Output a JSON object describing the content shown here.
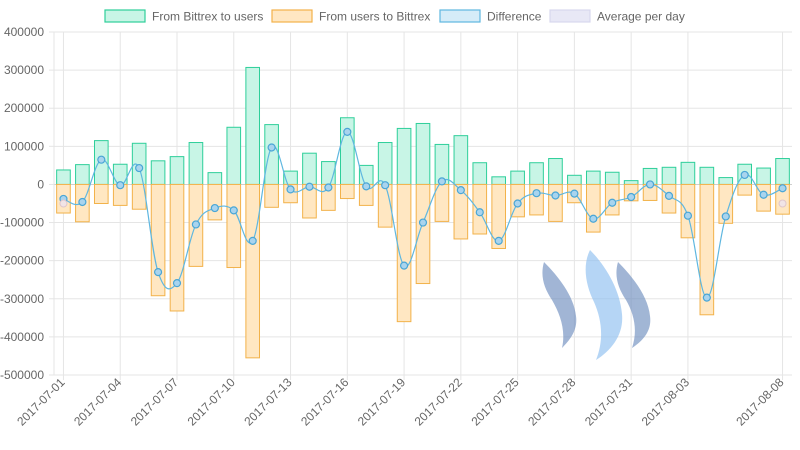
{
  "chart_data": {
    "type": "bar",
    "legend": {
      "position": "top",
      "items": [
        {
          "label": "From Bittrex to users",
          "fill": "#c8f5e6",
          "stroke": "#2ecf9a"
        },
        {
          "label": "From users to Bittrex",
          "fill": "#ffe7c2",
          "stroke": "#f2b24a"
        },
        {
          "label": "Difference",
          "fill": "#d5ecf8",
          "stroke": "#5fb7e0"
        },
        {
          "label": "Average per day",
          "fill": "#e8e8f6",
          "stroke": "#d8d8ee"
        }
      ]
    },
    "x": [
      "2017-07-01",
      "2017-07-02",
      "2017-07-03",
      "2017-07-04",
      "2017-07-05",
      "2017-07-06",
      "2017-07-07",
      "2017-07-08",
      "2017-07-09",
      "2017-07-10",
      "2017-07-11",
      "2017-07-12",
      "2017-07-13",
      "2017-07-14",
      "2017-07-15",
      "2017-07-16",
      "2017-07-17",
      "2017-07-18",
      "2017-07-19",
      "2017-07-20",
      "2017-07-21",
      "2017-07-22",
      "2017-07-23",
      "2017-07-24",
      "2017-07-25",
      "2017-07-26",
      "2017-07-27",
      "2017-07-28",
      "2017-07-29",
      "2017-07-30",
      "2017-07-31",
      "2017-08-01",
      "2017-08-02",
      "2017-08-03",
      "2017-08-04",
      "2017-08-05",
      "2017-08-06",
      "2017-08-07",
      "2017-08-08"
    ],
    "x_tick_labels": [
      {
        "label": "2017-07-01",
        "index": 0
      },
      {
        "label": "2017-07-04",
        "index": 3
      },
      {
        "label": "2017-07-07",
        "index": 6
      },
      {
        "label": "2017-07-10",
        "index": 9
      },
      {
        "label": "2017-07-13",
        "index": 12
      },
      {
        "label": "2017-07-16",
        "index": 15
      },
      {
        "label": "2017-07-19",
        "index": 18
      },
      {
        "label": "2017-07-22",
        "index": 21
      },
      {
        "label": "2017-07-25",
        "index": 24
      },
      {
        "label": "2017-07-28",
        "index": 27
      },
      {
        "label": "2017-07-31",
        "index": 30
      },
      {
        "label": "2017-08-03",
        "index": 33
      },
      {
        "label": "2017-08-08",
        "index": 38
      }
    ],
    "y_ticks": [
      400000,
      300000,
      200000,
      100000,
      0,
      -100000,
      -200000,
      -300000,
      -400000,
      -500000
    ],
    "ylim": [
      -500000,
      400000
    ],
    "grid": true,
    "series": [
      {
        "name": "From Bittrex to users",
        "type": "bar",
        "color": "#2ecf9a",
        "values": [
          38000,
          52000,
          115000,
          53000,
          108000,
          62000,
          73000,
          110000,
          31000,
          150000,
          307000,
          157000,
          35000,
          82000,
          60000,
          175000,
          50000,
          110000,
          147000,
          160000,
          105000,
          128000,
          57000,
          20000,
          35000,
          57000,
          68000,
          24000,
          35000,
          32000,
          10000,
          42000,
          45000,
          58000,
          45000,
          18000,
          53000,
          43000,
          68000
        ]
      },
      {
        "name": "From users to Bittrex",
        "type": "bar",
        "color": "#f2b24a",
        "values": [
          -75000,
          -98000,
          -50000,
          -55000,
          -65000,
          -292000,
          -332000,
          -215000,
          -93000,
          -218000,
          -455000,
          -60000,
          -48000,
          -88000,
          -68000,
          -37000,
          -55000,
          -112000,
          -360000,
          -260000,
          -97000,
          -143000,
          -130000,
          -168000,
          -85000,
          -80000,
          -97000,
          -48000,
          -125000,
          -80000,
          -43000,
          -42000,
          -75000,
          -140000,
          -342000,
          -102000,
          -28000,
          -70000,
          -78000
        ]
      },
      {
        "name": "Difference",
        "type": "line",
        "color": "#5fb7e0",
        "values": [
          -38000,
          -46000,
          65000,
          -2000,
          43000,
          -230000,
          -259000,
          -105000,
          -62000,
          -68000,
          -148000,
          97000,
          -13000,
          -6000,
          -8000,
          138000,
          -5000,
          -2000,
          -213000,
          -100000,
          8000,
          -15000,
          -73000,
          -148000,
          -50000,
          -23000,
          -29000,
          -24000,
          -90000,
          -48000,
          -33000,
          0,
          -30000,
          -82000,
          -297000,
          -84000,
          25000,
          -27000,
          -10000
        ]
      },
      {
        "name": "Average per day",
        "type": "point",
        "color": "#e8d6da",
        "points": [
          {
            "index": 0,
            "value": -50000
          },
          {
            "index": 38,
            "value": -50000
          }
        ]
      }
    ]
  }
}
